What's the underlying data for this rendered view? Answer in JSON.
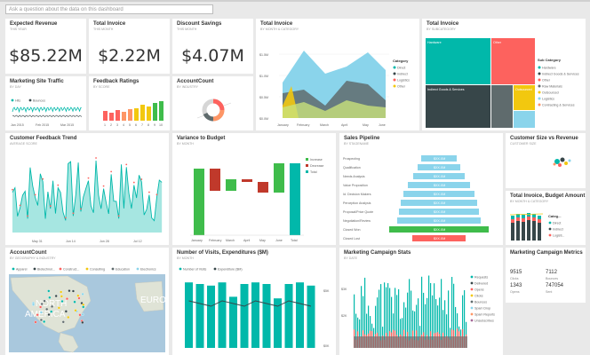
{
  "qa": {
    "placeholder": "Ask a question about the data on this dashboard"
  },
  "kpis": [
    {
      "title": "Expected Revenue",
      "subtitle": "THIS YEAR",
      "value": "$85.22M"
    },
    {
      "title": "Total Invoice",
      "subtitle": "THIS MONTH",
      "value": "$2.22M"
    },
    {
      "title": "Discount Savings",
      "subtitle": "THIS MONTH",
      "value": "$4.07M"
    }
  ],
  "total_invoice_cat": {
    "title": "Total Invoice",
    "subtitle": "BY MONTH & CATEGORY",
    "legend_title": "Category",
    "legend": [
      "Direct",
      "Indirect",
      "Logistics",
      "Other"
    ],
    "yticks": [
      "$0.0M",
      "$0.5M",
      "$1.0M",
      "$1.5M"
    ],
    "months": [
      "January",
      "February",
      "March",
      "April",
      "May",
      "June"
    ]
  },
  "treemap": {
    "title": "Total Invoice",
    "subtitle": "BY SUBCATEGORY",
    "legend_title": "Sub Category",
    "legend": [
      "Hardware",
      "Indirect Goods & Services",
      "Other",
      "Raw Materials",
      "Outsourced",
      "Logistics",
      "Contracting & Services"
    ],
    "boxes": [
      "Hardware",
      "Other",
      "Indirect Goods & Services",
      "Outsourced"
    ]
  },
  "site_traffic": {
    "title": "Marketing Site Traffic",
    "subtitle": "BY DAY",
    "legend": [
      "Hits",
      "Bounces"
    ],
    "xticks": [
      "Jan 2015",
      "Feb 2015",
      "Mar 2015"
    ]
  },
  "feedback": {
    "title": "Feedback Ratings",
    "subtitle": "BY SCORE",
    "xticks": [
      "1",
      "2",
      "3",
      "4",
      "5",
      "6",
      "7",
      "8",
      "9",
      "10"
    ]
  },
  "account": {
    "title": "AccountCount",
    "subtitle": "BY INDUSTRY"
  },
  "cft": {
    "title": "Customer Feedback Trend",
    "subtitle": "AVERAGE SCORE",
    "xticks": [
      "May 31",
      "Jun 14",
      "Jun 28",
      "Jul 12"
    ]
  },
  "variance": {
    "title": "Variance to Budget",
    "subtitle": "BY MONTH",
    "legend": [
      "Increase",
      "Decrease",
      "Total"
    ],
    "months": [
      "January",
      "February",
      "March",
      "April",
      "May",
      "June",
      "Total"
    ]
  },
  "pipeline": {
    "title": "Sales Pipeline",
    "subtitle": "BY STAGENAME",
    "stages": [
      "Prospecting",
      "Qualification",
      "Needs Analysis",
      "Value Proposition",
      "Id. Decision Makers",
      "Perception Analysis",
      "Proposal/Price Quote",
      "Negotiation/Review",
      "Closed Won",
      "Closed Lost"
    ],
    "values": [
      "$XX.XM",
      "$XX.XM",
      "$XX.XM",
      "$XX.XM",
      "$XX.XM",
      "$XX.XM",
      "$XX.XM",
      "$XX.XM",
      "$XX.XM",
      "$XX.XM"
    ]
  },
  "size_rev": {
    "title": "Customer Size vs Revenue",
    "subtitle": "CUSTOMER SIZE"
  },
  "budget": {
    "title": "Total Invoice, Budget Amount",
    "subtitle": "BY MONTH & CATEGORY",
    "legend_title": "Categ...",
    "legend": [
      "Direct",
      "Indirect",
      "Logisti..."
    ]
  },
  "map": {
    "title": "AccountCount",
    "subtitle": "BY GEOGRAPHY & INDUSTRY",
    "legend": [
      "Apparel",
      "Biotechnol...",
      "Construct...",
      "Consulting",
      "Education",
      "Electronics"
    ],
    "labels": [
      "NORTH",
      "AMERICA",
      "EURO"
    ]
  },
  "visits": {
    "title": "Number of Visits, Expenditures ($M)",
    "subtitle": "BY MONTH",
    "legend": [
      "Number of Visits",
      "Expenditure ($M)"
    ],
    "yticks": [
      "$5K",
      "$0K"
    ],
    "y2ticks": [
      "$3K",
      "$2K"
    ]
  },
  "campaign": {
    "title": "Marketing Campaign Stats",
    "subtitle": "BY DATE",
    "legend": [
      "Requests",
      "Delivered",
      "Opens",
      "Clicks",
      "Bounces",
      "Spam Drop",
      "Spam Reports",
      "Unsubscribes"
    ]
  },
  "metrics": {
    "title": "Marketing Campaign Metrics",
    "items": [
      {
        "value": "9515",
        "label": "Clicks"
      },
      {
        "value": "7112",
        "label": "Bounces"
      },
      {
        "value": "1343",
        "label": "Opens"
      },
      {
        "value": "747054",
        "label": "Sent"
      }
    ]
  },
  "colors": {
    "teal": "#01b8aa",
    "dark": "#374649",
    "red": "#fd625e",
    "yellow": "#f2c80f",
    "gray": "#5f6b6d",
    "blue": "#8ad4eb",
    "orange": "#fe9666",
    "green": "#3fbc4b"
  }
}
